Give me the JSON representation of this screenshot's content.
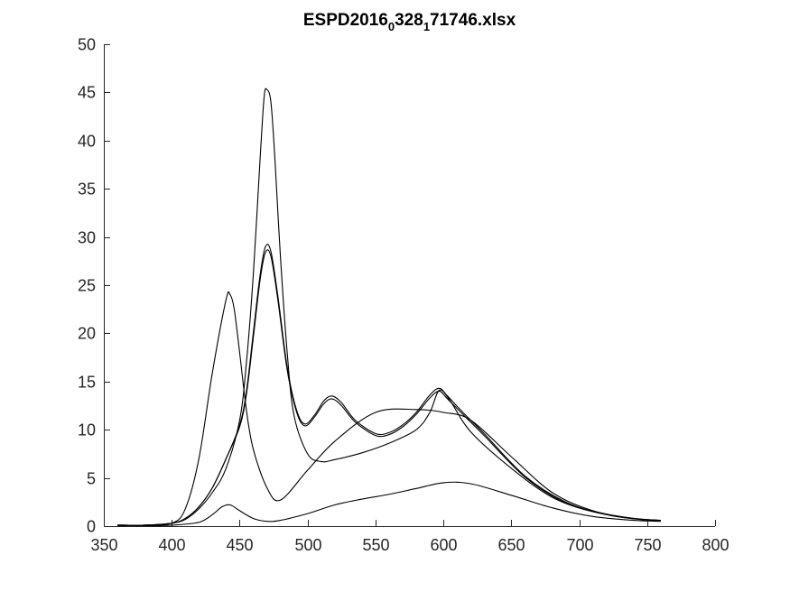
{
  "chart_data": {
    "type": "line",
    "title": {
      "parts": [
        {
          "text": "ESPD2016",
          "sub": false
        },
        {
          "text": "0",
          "sub": true
        },
        {
          "text": "328",
          "sub": false
        },
        {
          "text": "1",
          "sub": true
        },
        {
          "text": "71746.xlsx",
          "sub": false
        }
      ]
    },
    "xlabel": "",
    "ylabel": "",
    "xlim": [
      350,
      800
    ],
    "ylim": [
      0,
      50
    ],
    "xticks": [
      "350",
      "400",
      "450",
      "500",
      "550",
      "600",
      "650",
      "700",
      "750",
      "800"
    ],
    "yticks": [
      "0",
      "5",
      "10",
      "15",
      "20",
      "25",
      "30",
      "35",
      "40",
      "45",
      "50"
    ],
    "grid": false,
    "line_color": "#000000",
    "series": [
      {
        "x": [
          360,
          380,
          400,
          410,
          420,
          430,
          440,
          443,
          446,
          450,
          455,
          460,
          470,
          480,
          500,
          520,
          550,
          580,
          600,
          620,
          650,
          680,
          710,
          740,
          760
        ],
        "y": [
          0.1,
          0.1,
          0.3,
          1.8,
          7.0,
          16.0,
          23.5,
          24.0,
          22.5,
          18.0,
          12.0,
          8.0,
          4.0,
          2.7,
          5.8,
          8.8,
          11.8,
          12.1,
          11.8,
          11.0,
          7.2,
          3.5,
          1.6,
          0.8,
          0.6
        ]
      },
      {
        "x": [
          360,
          380,
          400,
          410,
          420,
          430,
          440,
          450,
          455,
          460,
          465,
          468,
          470,
          473,
          476,
          480,
          485,
          490,
          500,
          510,
          520,
          540,
          560,
          580,
          590,
          597,
          605,
          620,
          650,
          680,
          710,
          740,
          760
        ],
        "y": [
          0.1,
          0.1,
          0.3,
          0.7,
          1.8,
          3.5,
          6.0,
          11.0,
          17.0,
          26.0,
          38.0,
          44.5,
          45.3,
          44.0,
          38.0,
          28.0,
          18.0,
          11.5,
          7.5,
          6.7,
          6.9,
          7.6,
          8.6,
          10.0,
          11.8,
          14.1,
          13.0,
          9.8,
          6.0,
          3.0,
          1.5,
          0.8,
          0.6
        ]
      },
      {
        "x": [
          360,
          380,
          400,
          410,
          420,
          430,
          440,
          450,
          455,
          460,
          465,
          469,
          473,
          478,
          485,
          492,
          498,
          505,
          512,
          518,
          525,
          535,
          550,
          560,
          570,
          580,
          590,
          597,
          603,
          615,
          630,
          660,
          690,
          720,
          745,
          760
        ],
        "y": [
          0.1,
          0.1,
          0.3,
          0.8,
          2.0,
          4.0,
          7.0,
          10.5,
          14.0,
          20.0,
          26.0,
          29.0,
          28.5,
          24.0,
          16.5,
          12.0,
          10.6,
          11.5,
          13.0,
          13.5,
          12.8,
          11.0,
          9.6,
          9.7,
          10.5,
          11.8,
          13.6,
          14.3,
          13.5,
          11.7,
          9.6,
          5.2,
          2.5,
          1.2,
          0.7,
          0.6
        ]
      },
      {
        "x": [
          360,
          380,
          400,
          410,
          420,
          430,
          440,
          450,
          455,
          460,
          465,
          469,
          473,
          478,
          485,
          492,
          498,
          505,
          512,
          518,
          525,
          535,
          550,
          560,
          570,
          580,
          590,
          597,
          603,
          615,
          630,
          660,
          690,
          720,
          745,
          760
        ],
        "y": [
          0.1,
          0.1,
          0.3,
          0.8,
          2.0,
          4.0,
          7.0,
          10.3,
          13.7,
          19.5,
          25.5,
          28.4,
          28.0,
          23.6,
          16.2,
          11.8,
          10.4,
          11.3,
          12.7,
          13.2,
          12.5,
          10.8,
          9.4,
          9.5,
          10.3,
          11.6,
          13.3,
          14.0,
          13.2,
          11.5,
          9.4,
          5.1,
          2.4,
          1.2,
          0.7,
          0.6
        ]
      },
      {
        "x": [
          360,
          380,
          400,
          420,
          430,
          437,
          443,
          450,
          460,
          470,
          480,
          500,
          520,
          540,
          560,
          580,
          600,
          620,
          650,
          680,
          710,
          740,
          760
        ],
        "y": [
          0.05,
          0.05,
          0.1,
          0.4,
          1.2,
          2.0,
          2.2,
          1.6,
          0.8,
          0.5,
          0.6,
          1.3,
          2.2,
          2.8,
          3.3,
          3.9,
          4.5,
          4.4,
          3.2,
          1.9,
          1.0,
          0.6,
          0.5
        ]
      }
    ]
  }
}
